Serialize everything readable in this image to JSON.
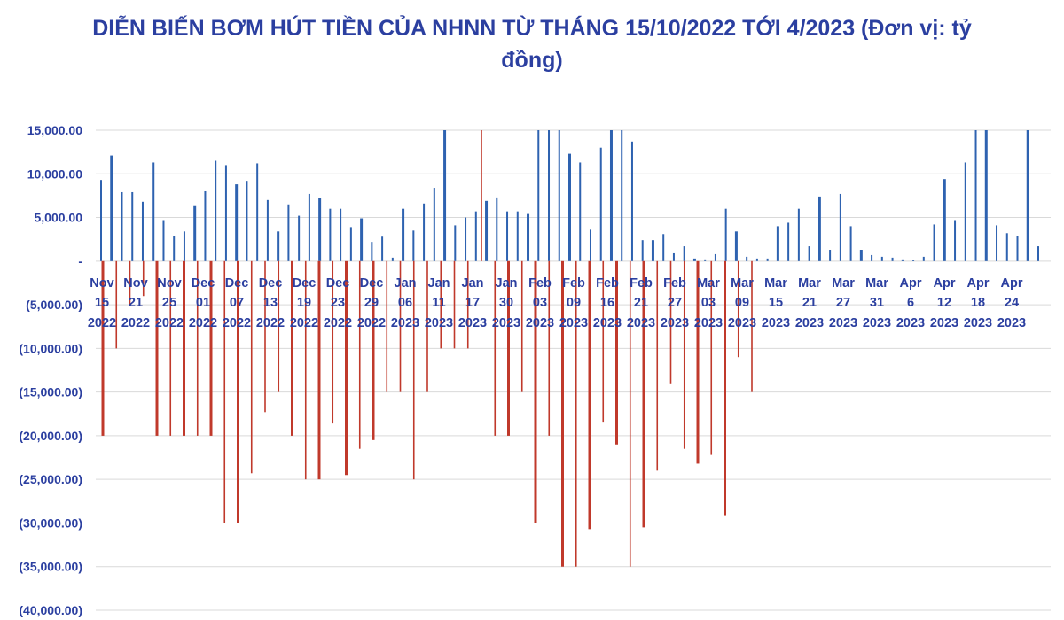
{
  "chart_data": {
    "type": "bar",
    "title": "DIỄN BIẾN BƠM HÚT TIỀN CỦA NHNN TỪ THÁNG 15/10/2022 TỚI 4/2023 (Đơn vị: tỷ đồng)",
    "xlabel": "",
    "ylabel": "",
    "ylim": [
      -40000,
      15000
    ],
    "grid": true,
    "legend": "none",
    "y_ticks": [
      "15,000.00",
      "10,000.00",
      "5,000.00",
      "-",
      "(5,000.00)",
      "(10,000.00)",
      "(15,000.00)",
      "(20,000.00)",
      "(25,000.00)",
      "(30,000.00)",
      "(35,000.00)",
      "(40,000.00)"
    ],
    "y_tick_values": [
      15000,
      10000,
      5000,
      0,
      -5000,
      -10000,
      -15000,
      -20000,
      -25000,
      -30000,
      -35000,
      -40000
    ],
    "x_ticks": [
      {
        "mon": "Nov",
        "day": "15",
        "year": "2022"
      },
      {
        "mon": "Nov",
        "day": "21",
        "year": "2022"
      },
      {
        "mon": "Nov",
        "day": "25",
        "year": "2022"
      },
      {
        "mon": "Dec",
        "day": "01",
        "year": "2022"
      },
      {
        "mon": "Dec",
        "day": "07",
        "year": "2022"
      },
      {
        "mon": "Dec",
        "day": "13",
        "year": "2022"
      },
      {
        "mon": "Dec",
        "day": "19",
        "year": "2022"
      },
      {
        "mon": "Dec",
        "day": "23",
        "year": "2022"
      },
      {
        "mon": "Dec",
        "day": "29",
        "year": "2022"
      },
      {
        "mon": "Jan",
        "day": "06",
        "year": "2023"
      },
      {
        "mon": "Jan",
        "day": "11",
        "year": "2023"
      },
      {
        "mon": "Jan",
        "day": "17",
        "year": "2023"
      },
      {
        "mon": "Jan",
        "day": "30",
        "year": "2023"
      },
      {
        "mon": "Feb",
        "day": "03",
        "year": "2023"
      },
      {
        "mon": "Feb",
        "day": "09",
        "year": "2023"
      },
      {
        "mon": "Feb",
        "day": "16",
        "year": "2023"
      },
      {
        "mon": "Feb",
        "day": "21",
        "year": "2023"
      },
      {
        "mon": "Feb",
        "day": "27",
        "year": "2023"
      },
      {
        "mon": "Mar",
        "day": "03",
        "year": "2023"
      },
      {
        "mon": "Mar",
        "day": "09",
        "year": "2023"
      },
      {
        "mon": "Mar",
        "day": "15",
        "year": "2023"
      },
      {
        "mon": "Mar",
        "day": "21",
        "year": "2023"
      },
      {
        "mon": "Mar",
        "day": "27",
        "year": "2023"
      },
      {
        "mon": "Mar",
        "day": "31",
        "year": "2023"
      },
      {
        "mon": "Apr",
        "day": "6",
        "year": "2023"
      },
      {
        "mon": "Apr",
        "day": "12",
        "year": "2023"
      },
      {
        "mon": "Apr",
        "day": "18",
        "year": "2023"
      },
      {
        "mon": "Apr",
        "day": "24",
        "year": "2023"
      }
    ],
    "series": [
      {
        "color": "#2e62b0",
        "values": [
          9300,
          12100,
          7900,
          7900,
          6800,
          11300,
          4700,
          2900,
          3400,
          6300,
          8000,
          11500,
          11000,
          8800,
          9200,
          11200,
          7000,
          3400,
          6500,
          5200,
          7700,
          7200,
          6000,
          6000,
          3900,
          4900,
          2200,
          2800,
          400,
          6000,
          3500,
          6600,
          8400,
          15000,
          4100,
          5000,
          5700,
          6900,
          7300,
          5700,
          5700,
          5400,
          15000,
          15000,
          15000,
          12300,
          11300,
          3600,
          13000,
          15000,
          15000,
          13700,
          2400,
          2400,
          3100,
          900,
          1700,
          300,
          200,
          800,
          6000,
          3400,
          500,
          300,
          300,
          4000,
          4400,
          6000,
          1700,
          7400,
          1300,
          7700,
          4000,
          1300,
          700,
          500,
          400,
          200,
          100,
          500,
          4200,
          9400,
          4700,
          11300,
          15000,
          15000,
          4100,
          3200,
          2900,
          15000,
          1700
        ]
      },
      {
        "color": "#c0392b",
        "values": [
          -20000,
          -10000,
          -5000,
          -4000,
          -20000,
          -20000,
          -20000,
          -20000,
          -20000,
          -30000,
          -30000,
          -24300,
          -17300,
          -15000,
          -20000,
          -25000,
          -25000,
          -18600,
          -24500,
          -21500,
          -20500,
          -15000,
          -15000,
          -25000,
          -15000,
          -10000,
          -10000,
          -10000,
          15000,
          -20000,
          -20000,
          -15000,
          -30000,
          -20000,
          -35000,
          -35000,
          -30700,
          -18500,
          -21000,
          -35000,
          -30500,
          -24000,
          -14000,
          -21500,
          -23200,
          -22200,
          -29200,
          -11000,
          -15000
        ]
      }
    ]
  }
}
